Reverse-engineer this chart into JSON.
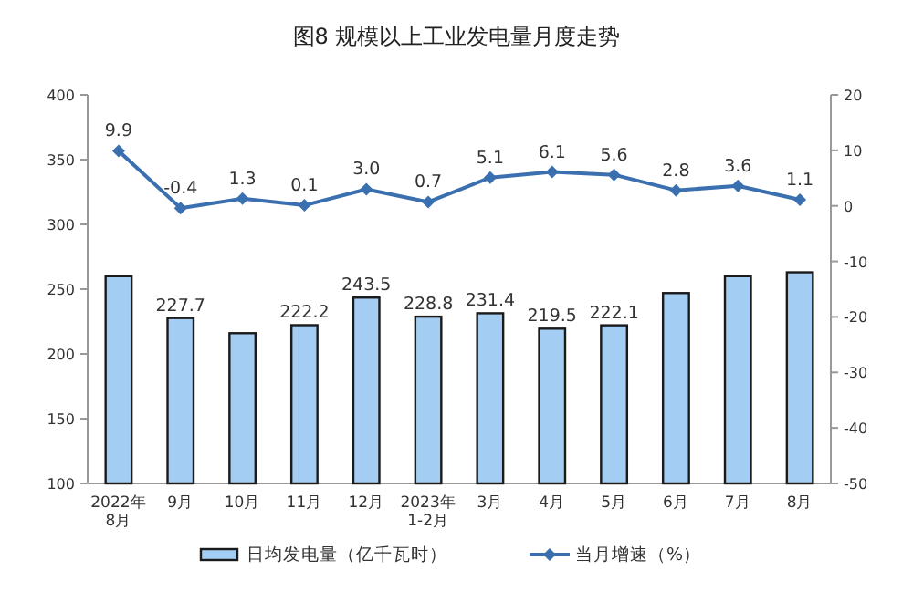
{
  "chart_data": {
    "type": "bar",
    "title": "图8  规模以上工业发电量月度走势",
    "categories": [
      "2022年\n8月",
      "9月",
      "10月",
      "11月",
      "12月",
      "2023年\n1-2月",
      "3月",
      "4月",
      "5月",
      "6月",
      "7月",
      "8月"
    ],
    "series": [
      {
        "name": "日均发电量（亿千瓦时）",
        "color": "#a3cdf3",
        "values": [
          260,
          227.7,
          216,
          222.2,
          243.5,
          228.8,
          231.4,
          219.5,
          222.1,
          247,
          260,
          263
        ],
        "value_labels": [
          null,
          "227.7",
          null,
          "222.2",
          "243.5",
          "228.8",
          "231.4",
          "219.5",
          "222.1",
          null,
          null,
          null
        ]
      },
      {
        "name": "当月增速（%）",
        "type": "line",
        "axis": "y2",
        "color": "#3a6fb0",
        "marker": "diamond",
        "values": [
          9.9,
          -0.4,
          1.3,
          0.1,
          3.0,
          0.7,
          5.1,
          6.1,
          5.6,
          2.8,
          3.6,
          1.1
        ],
        "value_labels": [
          "9.9",
          "-0.4",
          "1.3",
          "0.1",
          "3.0",
          "0.7",
          "5.1",
          "6.1",
          "5.6",
          "2.8",
          "3.6",
          "1.1"
        ]
      }
    ],
    "ylim": [
      100,
      400
    ],
    "yticks": [
      100,
      150,
      200,
      250,
      300,
      350,
      400
    ],
    "y2lim": [
      -50,
      20
    ],
    "y2ticks": [
      -50,
      -40,
      -30,
      -20,
      -10,
      0,
      10,
      20
    ],
    "legend": "bottom"
  }
}
